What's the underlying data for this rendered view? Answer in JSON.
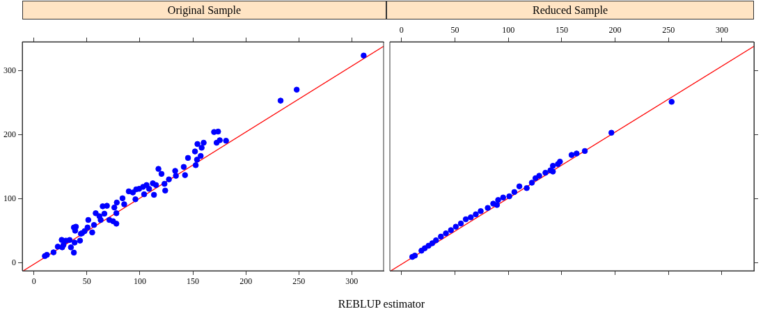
{
  "chart_data": [
    {
      "type": "scatter",
      "title": "Original Sample",
      "xlabel": "REBLUP estimator",
      "xlim": [
        -11,
        330
      ],
      "xticks": [
        0,
        50,
        100,
        150,
        200,
        250,
        300
      ],
      "ylim": [
        -12,
        345
      ],
      "yticks": [
        0,
        100,
        200,
        300
      ],
      "series": [
        {
          "marker": "circle",
          "color": "#0000ff",
          "x": [
            10.3,
            12.2,
            18.5,
            22.5,
            26.2,
            26.7,
            30.2,
            33.7,
            34.9,
            37.7,
            37.7,
            39.6,
            38.9,
            38.4,
            43.5,
            45.4,
            51.3,
            50.6,
            55,
            56.7,
            58.3,
            61.8,
            63,
            64.9,
            68.9,
            66.5,
            71.2,
            74.7,
            75.9,
            78.2,
            77.8,
            77.8,
            83.6,
            85.2,
            89.5,
            93.4,
            95.8,
            96.5,
            104,
            106.3,
            108.7,
            112.2,
            113.3,
            115.2,
            117.5,
            120.4,
            123.2,
            123.9,
            127.4,
            133.3,
            134,
            141.4,
            142.6,
            145.4,
            152.7,
            152,
            153.9,
            154.3,
            157.4,
            158.3,
            160.2,
            170,
            173.8,
            172.4,
            175.4,
            181.3,
            232.8,
            248,
            311.2,
            99.3,
            103,
            44.3,
            47.8,
            27.9
          ],
          "values": [
            10.9,
            12.8,
            16.7,
            25.6,
            36.1,
            24.5,
            35,
            36,
            24.5,
            16.3,
            55.5,
            56.7,
            50.5,
            32,
            35,
            46.6,
            67.2,
            55.5,
            47.8,
            59.4,
            77.7,
            73,
            67.2,
            88.5,
            89.3,
            77,
            67.2,
            65.2,
            86.6,
            94.4,
            61.4,
            77.7,
            101,
            91.7,
            111.8,
            110,
            99.4,
            114.9,
            107.2,
            121.6,
            115.7,
            124.3,
            106.4,
            121.6,
            146.8,
            139,
            123.5,
            113,
            130.5,
            143.7,
            136,
            149.9,
            137.1,
            163.9,
            152.6,
            174,
            161.2,
            185.6,
            167,
            179.8,
            187.6,
            204.3,
            205,
            187.6,
            191.5,
            190.7,
            253.2,
            270.3,
            323.5,
            115.7,
            118.8,
            45.8,
            49.7,
            28.3
          ]
        },
        {
          "type": "line",
          "color": "#ff0000",
          "x": [
            -10,
            330
          ],
          "values": [
            -12,
            338
          ]
        }
      ]
    },
    {
      "type": "scatter",
      "title": "Reduced Sample",
      "xlim": [
        -11,
        330
      ],
      "xticks": [
        0,
        50,
        100,
        150,
        200,
        250,
        300
      ],
      "ylim": [
        -12,
        345
      ],
      "yticks": [
        0,
        100,
        200,
        300
      ],
      "tick_labels": "x",
      "series": [
        {
          "marker": "circle",
          "color": "#0000ff",
          "x": [
            10,
            12.4,
            18.6,
            21.7,
            25.2,
            28.7,
            32.2,
            36.8,
            41.5,
            46.2,
            50.8,
            55.5,
            60.1,
            64.8,
            69.5,
            74.1,
            80.7,
            85.8,
            90.4,
            95.1,
            100.9,
            105.6,
            110.3,
            117.2,
            122,
            125.4,
            128.9,
            134.7,
            141.7,
            141.7,
            148.3,
            159.2,
            163.9,
            171.6,
            196.5,
            252.9,
            89.3,
            139.4,
            146.4
          ],
          "values": [
            9.6,
            11.6,
            19.3,
            23.1,
            27,
            30.9,
            35.5,
            41.3,
            46.3,
            51.3,
            56.7,
            61.7,
            68.3,
            71.3,
            76,
            81,
            86,
            92.6,
            98.3,
            102.2,
            104.1,
            110.7,
            119.6,
            116.9,
            125.3,
            132.3,
            136.1,
            140.8,
            142.7,
            151.6,
            158.1,
            168.5,
            170.8,
            174.7,
            203.2,
            251.4,
            90.6,
            144.6,
            154.3
          ]
        },
        {
          "type": "line",
          "color": "#ff0000",
          "x": [
            -10,
            330
          ],
          "values": [
            -12,
            338
          ]
        }
      ]
    }
  ]
}
